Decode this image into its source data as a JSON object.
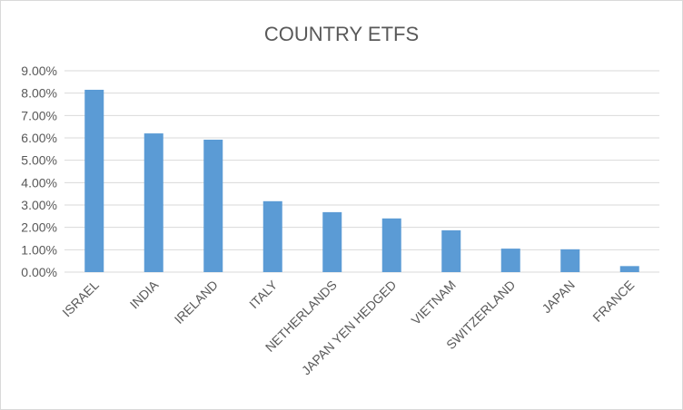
{
  "chart_data": {
    "type": "bar",
    "title": "COUNTRY ETFS",
    "xlabel": "",
    "ylabel": "",
    "categories": [
      "ISRAEL",
      "INDIA",
      "IRELAND",
      "ITALY",
      "NETHERLANDS",
      "JAPAN YEN HEDGED",
      "VIETNAM",
      "SWITZERLAND",
      "JAPAN",
      "FRANCE"
    ],
    "values": [
      8.15,
      6.2,
      5.92,
      3.17,
      2.68,
      2.4,
      1.87,
      1.05,
      1.02,
      0.27
    ],
    "ylim": [
      0,
      9
    ],
    "yticks": [
      "0.00%",
      "1.00%",
      "2.00%",
      "3.00%",
      "4.00%",
      "5.00%",
      "6.00%",
      "7.00%",
      "8.00%",
      "9.00%"
    ],
    "grid": true,
    "legend": "none",
    "bar_color": "#5b9bd5"
  }
}
